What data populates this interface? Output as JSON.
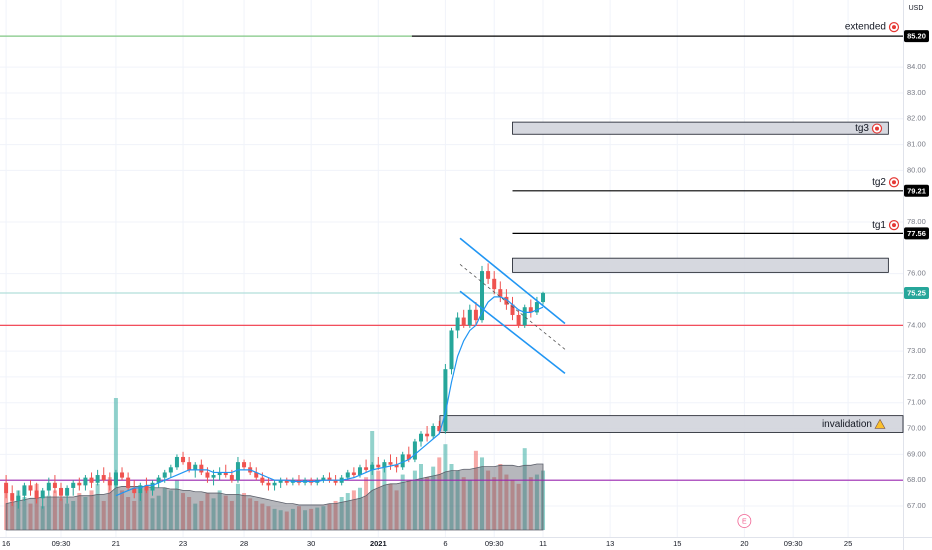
{
  "chart_data": {
    "type": "candlestick",
    "currency": "USD",
    "up_color": "#26a69a",
    "down_color": "#ef5350",
    "ylim": [
      65.8,
      86.6
    ],
    "xlim": [
      -1,
      147
    ],
    "grid": true,
    "yticks": [
      {
        "value": 67,
        "label": "67.00"
      },
      {
        "value": 68,
        "label": "68.00"
      },
      {
        "value": 69,
        "label": "69.00"
      },
      {
        "value": 70,
        "label": "70.00"
      },
      {
        "value": 71,
        "label": "71.00"
      },
      {
        "value": 72,
        "label": "72.00"
      },
      {
        "value": 73,
        "label": "73.00"
      },
      {
        "value": 74,
        "label": "74.00"
      },
      {
        "value": 76,
        "label": "76.00"
      },
      {
        "value": 78,
        "label": "78.00"
      },
      {
        "value": 80,
        "label": "80.00"
      },
      {
        "value": 81,
        "label": "81.00"
      },
      {
        "value": 82,
        "label": "82.00"
      },
      {
        "value": 83,
        "label": "83.00"
      },
      {
        "value": 84,
        "label": "84.00"
      }
    ],
    "xticks": [
      {
        "value": 0,
        "label": "16"
      },
      {
        "value": 9,
        "label": "09:30"
      },
      {
        "value": 18,
        "label": "21"
      },
      {
        "value": 29,
        "label": "23"
      },
      {
        "value": 39,
        "label": "28"
      },
      {
        "value": 50,
        "label": "30"
      },
      {
        "value": 61,
        "label": "2021"
      },
      {
        "value": 72,
        "label": "6"
      },
      {
        "value": 80,
        "label": "09:30"
      },
      {
        "value": 88,
        "label": "11"
      },
      {
        "value": 99,
        "label": "13"
      },
      {
        "value": 110,
        "label": "15"
      },
      {
        "value": 121,
        "label": "20"
      },
      {
        "value": 129,
        "label": "09:30"
      },
      {
        "value": 138,
        "label": "25"
      }
    ],
    "ohlc": [
      [
        67.9,
        68.2,
        67.3,
        67.5
      ],
      [
        67.5,
        67.8,
        67.0,
        67.2
      ],
      [
        67.2,
        67.6,
        66.9,
        67.4
      ],
      [
        67.4,
        67.9,
        67.2,
        67.8
      ],
      [
        67.8,
        68.0,
        67.4,
        67.6
      ],
      [
        67.6,
        67.9,
        67.1,
        67.3
      ],
      [
        67.3,
        67.7,
        66.9,
        67.6
      ],
      [
        67.6,
        68.1,
        67.4,
        67.9
      ],
      [
        67.9,
        68.2,
        67.5,
        67.7
      ],
      [
        67.7,
        67.9,
        67.2,
        67.4
      ],
      [
        67.4,
        67.8,
        67.1,
        67.7
      ],
      [
        67.7,
        68.0,
        67.4,
        67.9
      ],
      [
        67.9,
        68.1,
        67.6,
        67.8
      ],
      [
        67.8,
        68.2,
        67.6,
        68.1
      ],
      [
        68.1,
        68.3,
        67.7,
        67.9
      ],
      [
        67.9,
        68.4,
        67.8,
        68.2
      ],
      [
        68.2,
        68.5,
        67.9,
        68.0
      ],
      [
        68.0,
        68.3,
        67.6,
        67.8
      ],
      [
        67.8,
        68.4,
        67.7,
        68.3
      ],
      [
        68.3,
        68.5,
        68.0,
        68.1
      ],
      [
        68.1,
        68.3,
        67.6,
        67.7
      ],
      [
        67.7,
        68.0,
        67.3,
        67.5
      ],
      [
        67.5,
        67.9,
        67.2,
        67.8
      ],
      [
        67.8,
        68.1,
        67.5,
        67.6
      ],
      [
        67.6,
        68.0,
        67.4,
        67.9
      ],
      [
        67.9,
        68.2,
        67.7,
        68.1
      ],
      [
        68.1,
        68.4,
        67.9,
        68.3
      ],
      [
        68.3,
        68.6,
        68.1,
        68.5
      ],
      [
        68.5,
        69.0,
        68.4,
        68.9
      ],
      [
        68.9,
        69.1,
        68.6,
        68.7
      ],
      [
        68.7,
        68.9,
        68.3,
        68.4
      ],
      [
        68.4,
        68.7,
        68.1,
        68.6
      ],
      [
        68.6,
        68.8,
        68.2,
        68.3
      ],
      [
        68.3,
        68.5,
        67.9,
        68.1
      ],
      [
        68.1,
        68.4,
        67.8,
        68.2
      ],
      [
        68.2,
        68.5,
        68.0,
        68.3
      ],
      [
        68.3,
        68.6,
        68.1,
        68.2
      ],
      [
        68.2,
        68.4,
        67.9,
        68.0
      ],
      [
        68.0,
        68.9,
        67.9,
        68.7
      ],
      [
        68.7,
        68.8,
        68.4,
        68.5
      ],
      [
        68.5,
        68.7,
        68.2,
        68.3
      ],
      [
        68.3,
        68.5,
        68.0,
        68.1
      ],
      [
        68.1,
        68.3,
        67.8,
        67.9
      ],
      [
        67.9,
        68.1,
        67.6,
        67.8
      ],
      [
        67.8,
        68.0,
        67.6,
        67.9
      ],
      [
        67.9,
        68.1,
        67.7,
        68.0
      ],
      [
        68.0,
        68.1,
        67.8,
        67.9
      ],
      [
        67.9,
        68.1,
        67.8,
        68.0
      ],
      [
        68.0,
        68.2,
        67.8,
        67.9
      ],
      [
        67.9,
        68.1,
        67.8,
        68.0
      ],
      [
        68.0,
        68.1,
        67.8,
        67.9
      ],
      [
        67.9,
        68.1,
        67.8,
        68.0
      ],
      [
        68.0,
        68.2,
        67.9,
        68.1
      ],
      [
        68.1,
        68.3,
        67.9,
        68.0
      ],
      [
        68.0,
        68.2,
        67.8,
        67.9
      ],
      [
        67.9,
        68.2,
        67.8,
        68.1
      ],
      [
        68.1,
        68.4,
        68.0,
        68.3
      ],
      [
        68.3,
        68.5,
        68.1,
        68.2
      ],
      [
        68.2,
        68.6,
        68.1,
        68.5
      ],
      [
        68.5,
        68.8,
        68.3,
        68.4
      ],
      [
        68.4,
        68.7,
        68.2,
        68.6
      ],
      [
        68.6,
        68.9,
        68.4,
        68.5
      ],
      [
        68.5,
        68.8,
        68.3,
        68.7
      ],
      [
        68.7,
        69.0,
        68.4,
        68.6
      ],
      [
        68.6,
        68.9,
        68.3,
        68.5
      ],
      [
        68.5,
        69.1,
        68.4,
        69.0
      ],
      [
        69.0,
        69.3,
        68.7,
        68.8
      ],
      [
        68.8,
        69.6,
        68.7,
        69.5
      ],
      [
        69.5,
        69.9,
        69.3,
        69.8
      ],
      [
        69.8,
        70.1,
        69.5,
        69.7
      ],
      [
        69.7,
        70.2,
        69.6,
        70.1
      ],
      [
        70.1,
        70.3,
        69.8,
        69.9
      ],
      [
        69.9,
        72.5,
        69.8,
        72.3
      ],
      [
        72.3,
        73.9,
        72.1,
        73.8
      ],
      [
        73.8,
        74.5,
        73.5,
        74.3
      ],
      [
        74.3,
        74.6,
        73.9,
        74.0
      ],
      [
        74.0,
        74.8,
        73.9,
        74.6
      ],
      [
        74.6,
        74.9,
        74.0,
        74.2
      ],
      [
        74.2,
        76.3,
        74.1,
        76.1
      ],
      [
        76.1,
        76.4,
        75.6,
        75.8
      ],
      [
        75.8,
        76.1,
        75.2,
        75.4
      ],
      [
        75.4,
        75.7,
        74.9,
        75.1
      ],
      [
        75.1,
        75.4,
        74.6,
        74.8
      ],
      [
        74.8,
        75.1,
        74.2,
        74.4
      ],
      [
        74.4,
        74.6,
        73.9,
        74.0
      ],
      [
        74.0,
        74.8,
        73.9,
        74.7
      ],
      [
        74.7,
        75.0,
        74.3,
        74.5
      ],
      [
        74.5,
        75.1,
        74.4,
        74.9
      ],
      [
        74.9,
        75.3,
        74.8,
        75.25
      ]
    ],
    "volume": [
      28,
      22,
      30,
      25,
      20,
      35,
      18,
      26,
      30,
      24,
      20,
      22,
      28,
      25,
      30,
      35,
      22,
      40,
      100,
      30,
      25,
      22,
      28,
      30,
      24,
      26,
      32,
      30,
      38,
      28,
      25,
      20,
      22,
      28,
      24,
      30,
      26,
      22,
      35,
      28,
      24,
      22,
      20,
      18,
      16,
      15,
      14,
      16,
      18,
      15,
      16,
      17,
      18,
      20,
      22,
      25,
      28,
      30,
      32,
      40,
      75,
      45,
      50,
      35,
      30,
      42,
      38,
      45,
      50,
      40,
      48,
      55,
      65,
      50,
      45,
      40,
      38,
      60,
      55,
      45,
      40,
      50,
      42,
      38,
      35,
      62,
      40,
      42,
      45
    ],
    "volume_ma": [
      20,
      21,
      22,
      23,
      24,
      24,
      25,
      25,
      25,
      25,
      25,
      25,
      26,
      26,
      26,
      27,
      27,
      28,
      32,
      33,
      33,
      33,
      33,
      33,
      32,
      32,
      32,
      31,
      31,
      30,
      30,
      29,
      29,
      28,
      28,
      28,
      27,
      27,
      27,
      26,
      26,
      25,
      24,
      23,
      22,
      21,
      20,
      20,
      19,
      19,
      19,
      19,
      19,
      20,
      20,
      21,
      22,
      23,
      24,
      26,
      30,
      32,
      34,
      35,
      35,
      36,
      37,
      38,
      39,
      40,
      41,
      42,
      44,
      45,
      45,
      46,
      46,
      47,
      48,
      48,
      48,
      49,
      49,
      49,
      48,
      49,
      49,
      50,
      50
    ],
    "ma_color": "#2196f3",
    "ma": [
      null,
      null,
      null,
      null,
      null,
      null,
      null,
      null,
      null,
      null,
      null,
      null,
      null,
      null,
      null,
      null,
      null,
      null,
      67.4,
      67.5,
      67.6,
      67.7,
      67.7,
      67.8,
      67.8,
      67.9,
      68.0,
      68.1,
      68.2,
      68.3,
      68.4,
      68.4,
      68.4,
      68.4,
      68.3,
      68.3,
      68.3,
      68.3,
      68.4,
      68.4,
      68.4,
      68.3,
      68.2,
      68.1,
      68.0,
      68.0,
      68.0,
      67.95,
      67.95,
      67.95,
      67.95,
      67.95,
      68.0,
      68.0,
      68.0,
      68.0,
      68.05,
      68.1,
      68.2,
      68.3,
      68.4,
      68.45,
      68.5,
      68.55,
      68.6,
      68.7,
      68.8,
      69.0,
      69.2,
      69.4,
      69.6,
      69.8,
      70.6,
      71.8,
      72.8,
      73.4,
      73.8,
      74.0,
      74.5,
      74.9,
      75.1,
      75.1,
      75.0,
      74.8,
      74.6,
      74.5,
      74.5,
      74.6,
      74.7
    ],
    "hlines": [
      {
        "value": 85.2,
        "from": -1,
        "to": 66.5,
        "color": "#81c784"
      },
      {
        "value": 85.2,
        "from": 66.5,
        "to": 147,
        "color": "#000000"
      },
      {
        "value": 79.21,
        "from": 83,
        "to": 147,
        "color": "#000000"
      },
      {
        "value": 77.56,
        "from": 83,
        "to": 147,
        "color": "#000000"
      },
      {
        "value": 75.25,
        "from": -1,
        "to": 147,
        "color": "#b2dfdb"
      },
      {
        "value": 74.0,
        "from": -1,
        "to": 147,
        "color": "#f23645"
      },
      {
        "value": 68.0,
        "from": -1,
        "to": 147,
        "color": "#9c27b0"
      }
    ],
    "boxes": [
      {
        "from": 83,
        "to": 144.6,
        "top": 81.87,
        "bottom": 81.4
      },
      {
        "from": 83,
        "to": 144.6,
        "top": 76.6,
        "bottom": 76.05
      },
      {
        "from": 71.1,
        "to": 147,
        "top": 70.5,
        "bottom": 69.85
      }
    ],
    "trendlines": [
      {
        "x1": 74.4,
        "y1": 77.37,
        "x2": 91.6,
        "y2": 74.07,
        "color": "#2196f3",
        "style": "solid"
      },
      {
        "x1": 74.4,
        "y1": 75.32,
        "x2": 91.6,
        "y2": 72.14,
        "color": "#2196f3",
        "style": "solid"
      },
      {
        "x1": 74.4,
        "y1": 76.36,
        "x2": 91.6,
        "y2": 73.07,
        "color": "#555555",
        "style": "dashed"
      }
    ],
    "annotations": [
      {
        "text": "extended",
        "price": 85.55
      },
      {
        "text": "tg3",
        "price": 81.62
      },
      {
        "text": "tg2",
        "price": 79.54
      },
      {
        "text": "tg1",
        "price": 77.88
      },
      {
        "text": "invalidation",
        "price": 70.16
      }
    ],
    "price_labels": [
      {
        "value": 85.2,
        "label": "85.20",
        "color": "#000000"
      },
      {
        "value": 79.21,
        "label": "79.21",
        "color": "#000000"
      },
      {
        "value": 77.56,
        "label": "77.56",
        "color": "#000000"
      },
      {
        "value": 75.25,
        "label": "75.25",
        "color": "#26a69a"
      }
    ],
    "events": [
      {
        "x": 121,
        "label": "E"
      }
    ]
  }
}
